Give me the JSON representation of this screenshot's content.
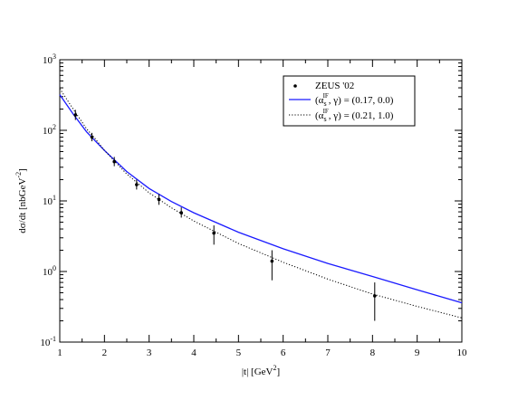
{
  "chart_data": {
    "type": "line",
    "title": "",
    "xlabel": {
      "main": "|t|",
      "unit": "GeV",
      "unit_exp": "2"
    },
    "ylabel": {
      "main": "dσ/dt",
      "unit": "nbGeV",
      "unit_exp": "-2"
    },
    "x_range": [
      1,
      10
    ],
    "x_ticks": [
      1,
      2,
      3,
      4,
      5,
      6,
      7,
      8,
      9,
      10
    ],
    "y_scale": "log",
    "y_range": [
      0.1,
      1000
    ],
    "y_tick_exponents": [
      -1,
      0,
      1,
      2,
      3
    ],
    "grid": false,
    "legend_position": "top-right",
    "legend": [
      {
        "name": "ZEUS  '02",
        "kind": "points"
      },
      {
        "base": "(α",
        "sub": "s",
        "sup": "IF",
        "rest": ", γ) = (0.17, 0.0)",
        "kind": "solid",
        "color": "#1a1aff"
      },
      {
        "base": "(α",
        "sub": "s",
        "sup": "IF",
        "rest": ", γ) = (0.21, 1.0)",
        "kind": "dotted",
        "color": "#000000"
      }
    ],
    "points": [
      {
        "x": 1.35,
        "y": 165,
        "err_low": 140,
        "err_high": 195
      },
      {
        "x": 1.72,
        "y": 80,
        "err_low": 70,
        "err_high": 92
      },
      {
        "x": 2.22,
        "y": 36,
        "err_low": 31,
        "err_high": 42
      },
      {
        "x": 2.72,
        "y": 17,
        "err_low": 14.5,
        "err_high": 20
      },
      {
        "x": 3.22,
        "y": 10.5,
        "err_low": 8.8,
        "err_high": 12.5
      },
      {
        "x": 3.72,
        "y": 6.8,
        "err_low": 5.8,
        "err_high": 8.1
      },
      {
        "x": 4.45,
        "y": 3.5,
        "err_low": 2.4,
        "err_high": 4.5
      },
      {
        "x": 5.75,
        "y": 1.4,
        "err_low": 0.75,
        "err_high": 2.0
      },
      {
        "x": 8.05,
        "y": 0.45,
        "err_low": 0.2,
        "err_high": 0.7
      }
    ],
    "series": [
      {
        "line": "solid",
        "color": "#1a1aff",
        "x": [
          1.0,
          1.3,
          1.6,
          1.8,
          2.0,
          2.5,
          3.0,
          3.5,
          4.0,
          5.0,
          6.0,
          7.0,
          8.0,
          9.0,
          10.0
        ],
        "y": [
          320,
          170,
          95,
          70,
          52,
          26,
          15,
          9.8,
          6.8,
          3.6,
          2.1,
          1.3,
          0.85,
          0.55,
          0.36
        ]
      },
      {
        "line": "dotted",
        "color": "#000000",
        "x": [
          1.0,
          1.3,
          1.6,
          1.8,
          2.0,
          2.5,
          3.0,
          3.5,
          4.0,
          5.0,
          6.0,
          7.0,
          8.0,
          9.0,
          10.0
        ],
        "y": [
          390,
          200,
          105,
          75,
          52,
          24,
          13,
          8.0,
          5.2,
          2.5,
          1.35,
          0.78,
          0.48,
          0.32,
          0.22
        ]
      }
    ]
  }
}
